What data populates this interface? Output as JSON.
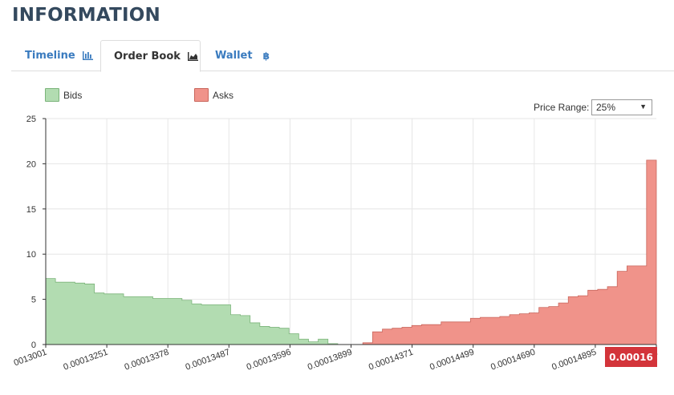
{
  "header": {
    "title": "INFORMATION"
  },
  "tabs": [
    {
      "label": "Timeline",
      "icon": "bar-chart-icon"
    },
    {
      "label": "Order Book",
      "icon": "area-chart-icon",
      "active": true
    },
    {
      "label": "Wallet",
      "icon": "bitcoin-icon",
      "icon_glyph": "฿"
    }
  ],
  "legend": {
    "bids": "Bids",
    "asks": "Asks"
  },
  "controls": {
    "price_range_label": "Price Range:",
    "price_range_value": "25%"
  },
  "current_price": "0.00016",
  "colors": {
    "bids_fill": "#b2dcb1",
    "bids_line": "#7bb47a",
    "asks_fill": "#f0938a",
    "asks_line": "#c9665c",
    "tab_link": "#3a7bbf",
    "price_badge": "#d3343a"
  },
  "chart_data": {
    "type": "area",
    "ylim": [
      0,
      25
    ],
    "yticks": [
      0,
      5,
      10,
      15,
      20,
      25
    ],
    "xtick_labels": [
      "0013001",
      "0.00013251",
      "0.00013378",
      "0.00013487",
      "0.00013596",
      "0.00013899",
      "0.00014371",
      "0.00014499",
      "0.00014690",
      "0.00014895",
      "0.000161"
    ],
    "series": [
      {
        "name": "Bids",
        "values": [
          7.3,
          6.9,
          6.9,
          6.8,
          6.7,
          5.7,
          5.6,
          5.6,
          5.3,
          5.3,
          5.3,
          5.1,
          5.1,
          5.1,
          4.9,
          4.5,
          4.4,
          4.4,
          4.4,
          3.3,
          3.2,
          2.4,
          2.0,
          1.9,
          1.8,
          1.2,
          0.6,
          0.3,
          0.6,
          0.1,
          0.0
        ],
        "level_count": 31
      },
      {
        "name": "Asks",
        "values": [
          0.0,
          0.2,
          1.4,
          1.7,
          1.8,
          1.9,
          2.1,
          2.2,
          2.2,
          2.5,
          2.5,
          2.5,
          2.9,
          3.0,
          3.0,
          3.1,
          3.3,
          3.4,
          3.5,
          4.1,
          4.2,
          4.6,
          5.3,
          5.4,
          6.0,
          6.1,
          6.4,
          8.1,
          8.7,
          8.7,
          20.4
        ],
        "level_count": 31
      }
    ]
  }
}
